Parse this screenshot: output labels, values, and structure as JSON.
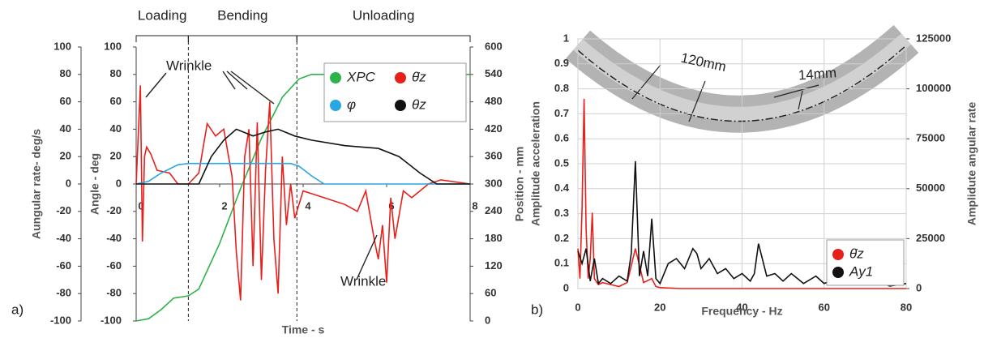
{
  "chart_data": [
    {
      "type": "line",
      "panel_label": "a)",
      "xlabel": "Time - s",
      "ylabel": "Aungular rate- deg/s",
      "ylabel_inner": "Angle - deg",
      "y2label": "Position - mm",
      "xlim": [
        0,
        8
      ],
      "xticks": [
        0,
        2,
        4,
        6,
        8
      ],
      "ylim": [
        -100,
        100
      ],
      "yticks": [
        -100,
        -80,
        -60,
        -40,
        -20,
        0,
        20,
        40,
        60,
        80,
        100
      ],
      "y2lim": [
        0,
        600
      ],
      "y2ticks": [
        0,
        60,
        120,
        180,
        240,
        300,
        360,
        420,
        480,
        540,
        600
      ],
      "grid": false,
      "phases": [
        "Loading",
        "Bending",
        "Unloading"
      ],
      "phase_bounds": [
        1.25,
        3.85
      ],
      "annotations": [
        "Wrinkle",
        "Wrinkle"
      ],
      "series": [
        {
          "name": "XPC",
          "color": "#2db34a",
          "axis": "y2",
          "x": [
            0,
            0.3,
            0.6,
            0.9,
            1.25,
            1.5,
            2,
            2.5,
            3,
            3.5,
            3.9,
            4.2,
            4.5,
            8
          ],
          "values": [
            0,
            5,
            25,
            50,
            55,
            70,
            170,
            290,
            400,
            490,
            530,
            540,
            540,
            540
          ]
        },
        {
          "name": "θ̇z",
          "color": "#e8201c",
          "axis": "y",
          "x": [
            0,
            0.1,
            0.15,
            0.2,
            0.25,
            0.35,
            0.5,
            0.8,
            1.0,
            1.25,
            1.5,
            1.7,
            1.9,
            2.1,
            2.3,
            2.4,
            2.5,
            2.6,
            2.7,
            2.8,
            2.9,
            3.0,
            3.1,
            3.2,
            3.3,
            3.4,
            3.5,
            3.6,
            3.7,
            3.8,
            4.0,
            4.5,
            5.0,
            5.3,
            5.5,
            5.7,
            5.8,
            5.9,
            6.0,
            6.1,
            6.2,
            6.4,
            6.6,
            6.8,
            7.0,
            7.3,
            8
          ],
          "values": [
            0,
            72,
            -42,
            20,
            27,
            22,
            10,
            8,
            0,
            0,
            8,
            44,
            35,
            40,
            5,
            -50,
            -85,
            20,
            40,
            -60,
            45,
            -70,
            10,
            60,
            -40,
            -80,
            20,
            -30,
            0,
            -25,
            -5,
            -10,
            -15,
            -20,
            -5,
            -40,
            -55,
            -30,
            -72,
            -10,
            -40,
            -5,
            -10,
            -5,
            0,
            3,
            0
          ]
        },
        {
          "name": "φ",
          "color": "#2aa6e0",
          "axis": "y",
          "x": [
            0,
            0.3,
            0.6,
            1.0,
            1.25,
            3.7,
            3.9,
            4.2,
            4.5,
            8
          ],
          "values": [
            0,
            2,
            8,
            14,
            15,
            15,
            13,
            6,
            0,
            0
          ]
        },
        {
          "name": "θz",
          "color": "#111111",
          "axis": "y",
          "x": [
            0,
            1.5,
            1.8,
            2.1,
            2.4,
            2.8,
            3.1,
            3.4,
            3.8,
            4.2,
            5,
            5.8,
            6.3,
            6.8,
            7.2,
            8
          ],
          "values": [
            0,
            0,
            20,
            32,
            40,
            35,
            38,
            40,
            35,
            32,
            28,
            26,
            20,
            8,
            0,
            0
          ]
        }
      ]
    },
    {
      "type": "line",
      "panel_label": "b)",
      "xlabel": "Frequency - Hz",
      "ylabel": "Amplitude acceleration",
      "y2label": "Amplidute angular rate",
      "xlim": [
        0,
        80
      ],
      "xticks": [
        0,
        20,
        40,
        60,
        80
      ],
      "ylim": [
        0,
        1
      ],
      "yticks": [
        0,
        0.1,
        0.2,
        0.3,
        0.4,
        0.5,
        0.6,
        0.7,
        0.8,
        0.9,
        1
      ],
      "y2lim": [
        0,
        125000
      ],
      "y2ticks": [
        0,
        25000,
        50000,
        75000,
        100000,
        125000
      ],
      "grid": true,
      "annotations": [
        "120mm",
        "14mm"
      ],
      "series": [
        {
          "name": "θ̇z",
          "color": "#e8201c",
          "axis": "y2",
          "x": [
            0,
            0.5,
            1,
            1.5,
            2,
            2.5,
            3,
            3.5,
            4,
            5,
            6,
            8,
            10,
            12,
            14,
            16,
            18,
            19,
            20,
            25,
            80
          ],
          "values": [
            20000,
            5000,
            40000,
            95000,
            30000,
            5000,
            15000,
            38000,
            5000,
            2000,
            3000,
            2000,
            1000,
            3000,
            20000,
            3000,
            5000,
            1000,
            500,
            0,
            0
          ]
        },
        {
          "name": "Ay1",
          "color": "#111111",
          "axis": "y",
          "x": [
            0,
            1,
            2,
            3,
            4,
            5,
            6,
            8,
            10,
            12,
            13,
            14,
            15,
            16,
            17,
            18,
            19,
            20,
            22,
            24,
            26,
            28,
            29,
            30,
            32,
            34,
            36,
            38,
            40,
            42,
            43,
            44,
            46,
            48,
            50,
            52,
            55,
            58,
            60,
            63,
            66,
            68,
            70,
            73,
            76,
            80
          ],
          "values": [
            0.15,
            0.1,
            0.16,
            0.03,
            0.12,
            0.02,
            0.04,
            0.02,
            0.05,
            0.03,
            0.14,
            0.51,
            0.05,
            0.15,
            0.05,
            0.28,
            0.04,
            0.02,
            0.1,
            0.12,
            0.08,
            0.16,
            0.14,
            0.08,
            0.12,
            0.06,
            0.08,
            0.04,
            0.06,
            0.03,
            0.06,
            0.18,
            0.05,
            0.06,
            0.03,
            0.06,
            0.02,
            0.05,
            0.02,
            0.04,
            0.03,
            0.05,
            0.02,
            0.03,
            0.01,
            0.02
          ]
        }
      ]
    }
  ]
}
